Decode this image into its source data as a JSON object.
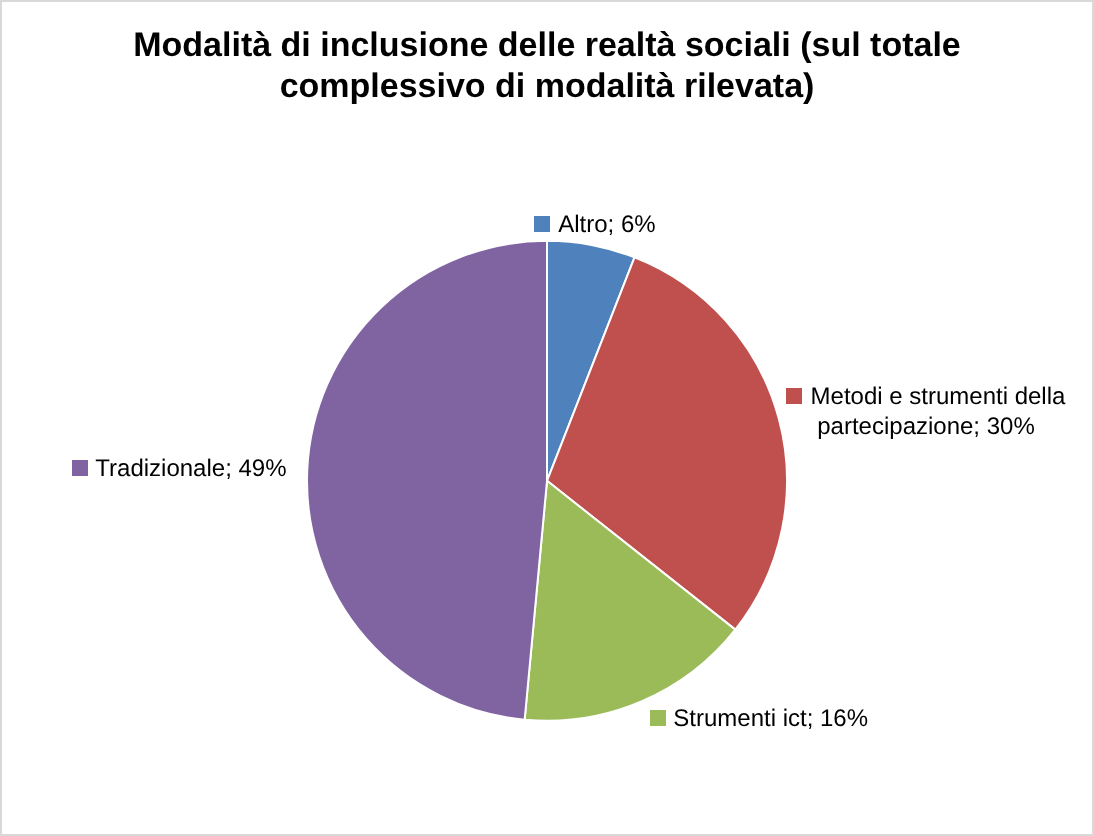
{
  "chart_data": {
    "type": "pie",
    "title": "Modalità di inclusione delle realtà sociali (sul totale complessivo di modalità rilevata)",
    "categories": [
      "Altro",
      "Metodi e strumenti della partecipazione",
      "Strumenti ict",
      "Tradizionale"
    ],
    "values": [
      6,
      30,
      16,
      49
    ],
    "colors": [
      "#4f81bd",
      "#c0504d",
      "#9bbb59",
      "#8064a2"
    ],
    "value_labels": [
      "6%",
      "30%",
      "16%",
      "49%"
    ],
    "legend": "right"
  }
}
